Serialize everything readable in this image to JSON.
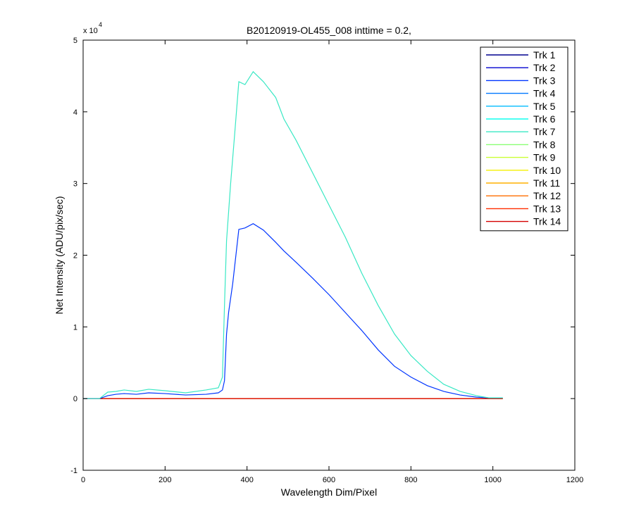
{
  "chart_data": {
    "type": "line",
    "title": "B20120919-OL455_008 inttime = 0.2,",
    "xlabel": "Wavelength Dim/Pixel",
    "ylabel": "Net Intensity (ADU/pix/sec)",
    "xlim": [
      0,
      1200
    ],
    "ylim": [
      -1,
      5
    ],
    "y_scale_exponent_label": "x 10",
    "y_scale_exponent_power": "4",
    "xticks": [
      "0",
      "200",
      "400",
      "600",
      "800",
      "1000",
      "1200"
    ],
    "yticks": [
      "-1",
      "0",
      "1",
      "2",
      "3",
      "4",
      "5"
    ],
    "xtick_values": [
      0,
      200,
      400,
      600,
      800,
      1000,
      1200
    ],
    "ytick_values": [
      -1,
      0,
      1,
      2,
      3,
      4,
      5
    ],
    "legend_position": "top-right",
    "grid": false,
    "series": [
      {
        "name": "Trk 1",
        "color": "#00008f",
        "x": [
          0,
          1024
        ],
        "y": [
          0,
          0
        ]
      },
      {
        "name": "Trk 2",
        "color": "#0000d0",
        "x": [
          0,
          1024
        ],
        "y": [
          0,
          0
        ]
      },
      {
        "name": "Trk 3",
        "color": "#0035ff",
        "x": [
          0,
          40,
          60,
          80,
          100,
          130,
          160,
          200,
          250,
          300,
          330,
          340,
          345,
          350,
          355,
          365,
          380,
          395,
          415,
          440,
          470,
          490,
          520,
          560,
          600,
          640,
          680,
          720,
          760,
          800,
          840,
          880,
          920,
          960,
          990,
          1024
        ],
        "y": [
          0,
          0,
          0.04,
          0.06,
          0.07,
          0.06,
          0.08,
          0.07,
          0.05,
          0.06,
          0.08,
          0.12,
          0.25,
          0.9,
          1.2,
          1.6,
          2.36,
          2.38,
          2.44,
          2.35,
          2.18,
          2.06,
          1.9,
          1.68,
          1.45,
          1.2,
          0.95,
          0.68,
          0.45,
          0.3,
          0.18,
          0.1,
          0.05,
          0.02,
          0.01,
          0.01
        ]
      },
      {
        "name": "Trk 4",
        "color": "#0078ff",
        "x": [
          0,
          1024
        ],
        "y": [
          0,
          0
        ]
      },
      {
        "name": "Trk 5",
        "color": "#00bcff",
        "x": [
          0,
          1024
        ],
        "y": [
          0,
          0
        ]
      },
      {
        "name": "Trk 6",
        "color": "#10ffef",
        "x": [
          0,
          1024
        ],
        "y": [
          0,
          0
        ]
      },
      {
        "name": "Trk 7",
        "color": "#39e8c4",
        "x": [
          0,
          40,
          60,
          80,
          100,
          130,
          160,
          200,
          250,
          300,
          330,
          340,
          345,
          350,
          360,
          370,
          380,
          395,
          415,
          440,
          470,
          490,
          520,
          560,
          600,
          640,
          680,
          720,
          760,
          800,
          840,
          880,
          920,
          960,
          990,
          1024
        ],
        "y": [
          0,
          0,
          0.09,
          0.1,
          0.12,
          0.1,
          0.13,
          0.11,
          0.08,
          0.12,
          0.15,
          0.3,
          1.3,
          2.2,
          3.0,
          3.7,
          4.42,
          4.38,
          4.56,
          4.42,
          4.2,
          3.9,
          3.6,
          3.15,
          2.7,
          2.25,
          1.75,
          1.3,
          0.9,
          0.6,
          0.38,
          0.2,
          0.1,
          0.04,
          0.01,
          0.01
        ]
      },
      {
        "name": "Trk 8",
        "color": "#8bff74",
        "x": [
          0,
          1024
        ],
        "y": [
          0,
          0
        ]
      },
      {
        "name": "Trk 9",
        "color": "#cbff34",
        "x": [
          0,
          1024
        ],
        "y": [
          0,
          0
        ]
      },
      {
        "name": "Trk 10",
        "color": "#f4f000",
        "x": [
          0,
          1024
        ],
        "y": [
          0,
          0
        ]
      },
      {
        "name": "Trk 11",
        "color": "#ffb000",
        "x": [
          0,
          1024
        ],
        "y": [
          0,
          0
        ]
      },
      {
        "name": "Trk 12",
        "color": "#ff6e00",
        "x": [
          0,
          1024
        ],
        "y": [
          0,
          0
        ]
      },
      {
        "name": "Trk 13",
        "color": "#ff2c00",
        "x": [
          0,
          1024
        ],
        "y": [
          0,
          0
        ]
      },
      {
        "name": "Trk 14",
        "color": "#d40000",
        "x": [
          0,
          1024
        ],
        "y": [
          0,
          0
        ]
      }
    ]
  }
}
